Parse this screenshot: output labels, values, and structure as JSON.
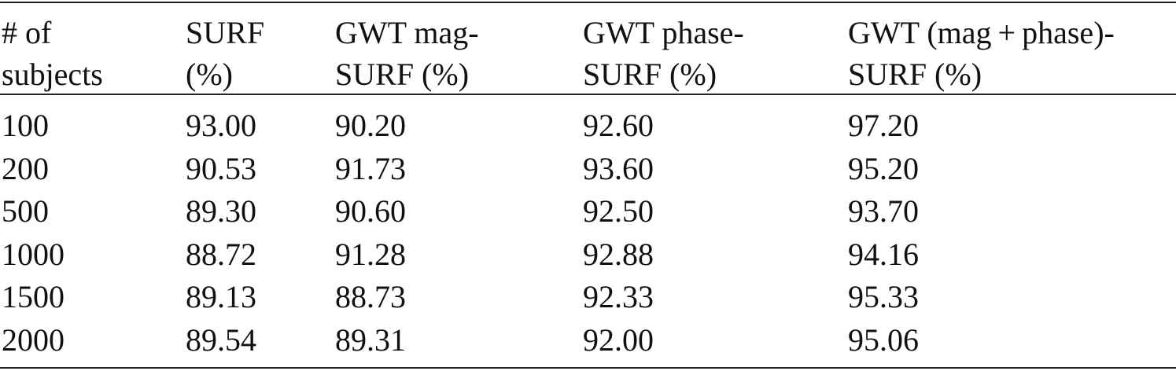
{
  "table": {
    "header": [
      [
        "# of",
        "subjects"
      ],
      [
        "SURF",
        "(%)"
      ],
      [
        "GWT mag-",
        "SURF (%)"
      ],
      [
        "GWT phase-",
        "SURF (%)"
      ],
      [
        "GWT (mag + phase)-",
        "SURF (%)"
      ]
    ],
    "rows": [
      [
        "100",
        "93.00",
        "90.20",
        "92.60",
        "97.20"
      ],
      [
        "200",
        "90.53",
        "91.73",
        "93.60",
        "95.20"
      ],
      [
        "500",
        "89.30",
        "90.60",
        "92.50",
        "93.70"
      ],
      [
        "1000",
        "88.72",
        "91.28",
        "92.88",
        "94.16"
      ],
      [
        "1500",
        "89.13",
        "88.73",
        "92.33",
        "95.33"
      ],
      [
        "2000",
        "89.54",
        "89.31",
        "92.00",
        "95.06"
      ]
    ]
  }
}
